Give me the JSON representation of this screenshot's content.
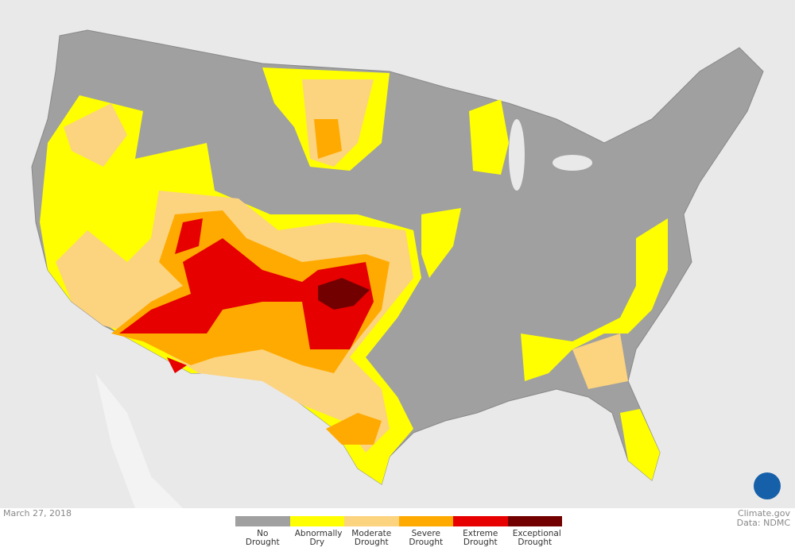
{
  "date": "March 27, 2018",
  "credit": "Climate.gov",
  "source": "Data: NDMC",
  "legend": [
    {
      "label": "No Drought",
      "color": "#a0a0a0"
    },
    {
      "label": "Abnormally Dry",
      "color": "#ffff00"
    },
    {
      "label": "Moderate Drought",
      "color": "#fcd37f"
    },
    {
      "label": "Severe Drought",
      "color": "#ffaa00"
    },
    {
      "label": "Extreme Drought",
      "color": "#e60000"
    },
    {
      "label": "Exceptional Drought",
      "color": "#730000"
    }
  ]
}
